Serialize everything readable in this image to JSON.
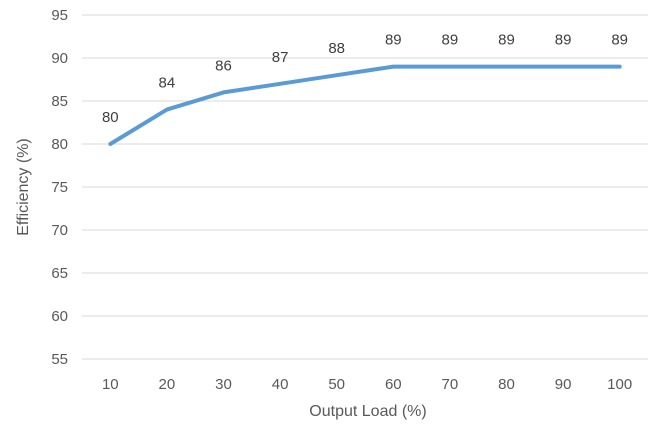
{
  "chart_data": {
    "type": "line",
    "title": "",
    "xlabel": "Output Load (%)",
    "ylabel": "Efficiency (%)",
    "x": [
      10,
      20,
      30,
      40,
      50,
      60,
      70,
      80,
      90,
      100
    ],
    "series": [
      {
        "values": [
          80,
          84,
          86,
          87,
          88,
          89,
          89,
          89,
          89,
          89
        ]
      }
    ],
    "data_labels": [
      "80",
      "84",
      "86",
      "87",
      "88",
      "89",
      "89",
      "89",
      "89",
      "89"
    ],
    "y_ticks": [
      "55",
      "60",
      "65",
      "70",
      "75",
      "80",
      "85",
      "90",
      "95"
    ],
    "ylim": [
      55,
      95
    ],
    "grid": "horizontal",
    "legend": "none",
    "line_color": "#5b9bd5"
  }
}
